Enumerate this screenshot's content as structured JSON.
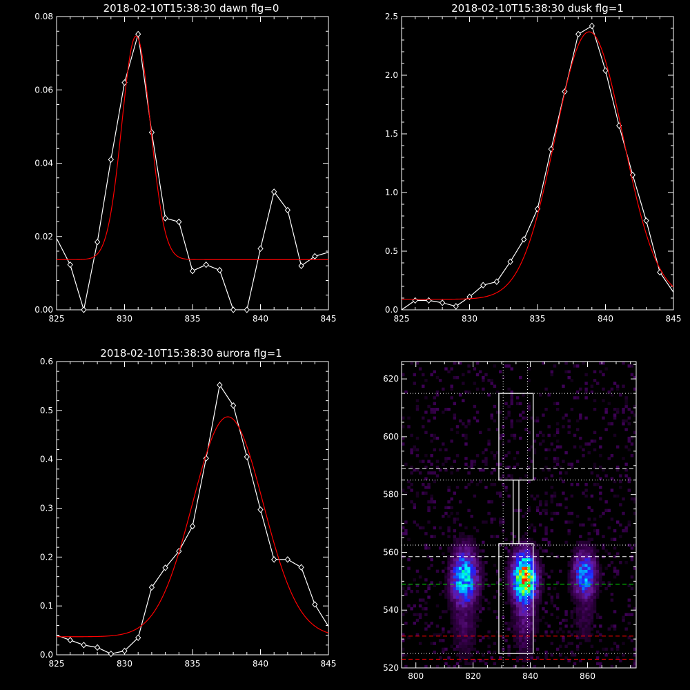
{
  "chart_data": [
    {
      "id": "dawn",
      "type": "line",
      "title": "2018-02-10T15:38:30 dawn flg=0",
      "xlim": [
        825,
        845
      ],
      "ylim": [
        0,
        0.08
      ],
      "xticks": [
        825,
        830,
        835,
        840,
        845
      ],
      "yticks": [
        0,
        0.02,
        0.04,
        0.06,
        0.08
      ],
      "ytick_labels": [
        "0.00",
        "0.02",
        "0.04",
        "0.06",
        "0.08"
      ],
      "series": [
        {
          "color": "#ffffff",
          "marker": "diamond",
          "x": [
            825,
            826,
            827,
            828,
            829,
            830,
            831,
            832,
            833,
            834,
            835,
            836,
            837,
            838,
            839,
            840,
            841,
            842,
            843,
            844,
            845
          ],
          "y": [
            0.0195,
            0.0123,
            0.0,
            0.0185,
            0.041,
            0.062,
            0.0752,
            0.0484,
            0.025,
            0.024,
            0.0106,
            0.0123,
            0.0108,
            0.0,
            0.0,
            0.0167,
            0.0322,
            0.0272,
            0.012,
            0.0146,
            0.0157
          ]
        },
        {
          "color": "#ff0000",
          "fit": "gaussian",
          "center": 830.85,
          "amplitude": 0.061,
          "sigma": 1.05,
          "baseline": 0.0137
        }
      ]
    },
    {
      "id": "dusk",
      "type": "line",
      "title": "2018-02-10T15:38:30 dusk flg=1",
      "xlim": [
        825,
        845
      ],
      "ylim": [
        0,
        2.5
      ],
      "xticks": [
        825,
        830,
        835,
        840,
        845
      ],
      "yticks": [
        0,
        0.5,
        1.0,
        1.5,
        2.0,
        2.5
      ],
      "ytick_labels": [
        "0.0",
        "0.5",
        "1.0",
        "1.5",
        "2.0",
        "2.5"
      ],
      "series": [
        {
          "color": "#ffffff",
          "marker": "diamond",
          "x": [
            825,
            826,
            827,
            828,
            829,
            830,
            831,
            832,
            833,
            834,
            835,
            836,
            837,
            838,
            839,
            840,
            841,
            842,
            843,
            844,
            845
          ],
          "y": [
            0.0,
            0.08,
            0.08,
            0.06,
            0.03,
            0.11,
            0.21,
            0.24,
            0.41,
            0.6,
            0.86,
            1.37,
            1.86,
            2.35,
            2.42,
            2.04,
            1.57,
            1.15,
            0.76,
            0.32,
            0.15
          ]
        },
        {
          "color": "#ff0000",
          "fit": "gaussian",
          "center": 838.8,
          "amplitude": 2.28,
          "sigma": 2.5,
          "baseline": 0.09
        }
      ]
    },
    {
      "id": "aurora",
      "type": "line",
      "title": "2018-02-10T15:38:30 aurora flg=1",
      "xlim": [
        825,
        845
      ],
      "ylim": [
        0,
        0.6
      ],
      "xticks": [
        825,
        830,
        835,
        840,
        845
      ],
      "yticks": [
        0,
        0.1,
        0.2,
        0.3,
        0.4,
        0.5,
        0.6
      ],
      "ytick_labels": [
        "0.0",
        "0.1",
        "0.2",
        "0.3",
        "0.4",
        "0.5",
        "0.6"
      ],
      "series": [
        {
          "color": "#ffffff",
          "marker": "diamond",
          "x": [
            825,
            826,
            827,
            828,
            829,
            830,
            831,
            832,
            833,
            834,
            835,
            836,
            837,
            838,
            839,
            840,
            841,
            842,
            843,
            844,
            845
          ],
          "y": [
            0.04,
            0.03,
            0.02,
            0.015,
            0.002,
            0.008,
            0.035,
            0.138,
            0.178,
            0.212,
            0.263,
            0.402,
            0.552,
            0.51,
            0.405,
            0.297,
            0.195,
            0.195,
            0.179,
            0.103,
            0.058
          ]
        },
        {
          "color": "#ff0000",
          "fit": "gaussian",
          "center": 837.6,
          "amplitude": 0.45,
          "sigma": 2.6,
          "baseline": 0.037
        }
      ]
    },
    {
      "id": "spectrogram",
      "type": "heatmap",
      "title": "",
      "xlim": [
        795,
        877
      ],
      "ylim": [
        520,
        626
      ],
      "xticks": [
        800,
        820,
        840,
        860
      ],
      "yticks": [
        520,
        540,
        560,
        580,
        600,
        620
      ],
      "colormap": [
        "#000000",
        "#3a0050",
        "#6a1a9a",
        "#2020ff",
        "#00a0ff",
        "#00ffff",
        "#00ff60",
        "#ffff00",
        "#ff2000"
      ],
      "emission_bands": [
        {
          "x_center": 817,
          "x_width": 4.5,
          "y_center": 551,
          "y_sigma": 7,
          "peak": 0.62
        },
        {
          "x_center": 838,
          "x_width": 4.0,
          "y_center": 551,
          "y_sigma": 6,
          "peak": 1.0
        },
        {
          "x_center": 859,
          "x_width": 4.0,
          "y_center": 552,
          "y_sigma": 6,
          "peak": 0.5
        }
      ],
      "boxes": [
        {
          "x": [
            829,
            841
          ],
          "y": [
            525,
            563
          ]
        },
        {
          "x": [
            829,
            841
          ],
          "y": [
            585,
            615
          ]
        },
        {
          "x": [
            834,
            836
          ],
          "y": [
            563,
            585
          ]
        }
      ],
      "hlines": [
        {
          "y": 615,
          "style": "dotted",
          "color": "#ffffff"
        },
        {
          "y": 589,
          "style": "dashed",
          "color": "#ffffff"
        },
        {
          "y": 585,
          "style": "dotted",
          "color": "#ffffff"
        },
        {
          "y": 562.5,
          "style": "dotted",
          "color": "#ffffff"
        },
        {
          "y": 558.5,
          "style": "dashed",
          "color": "#ffffff"
        },
        {
          "y": 549,
          "style": "dashed",
          "color": "#00ff00"
        },
        {
          "y": 531,
          "style": "dashed",
          "color": "#ff0000"
        },
        {
          "y": 525,
          "style": "dotted",
          "color": "#ffffff"
        },
        {
          "y": 523,
          "style": "dashed",
          "color": "#ff0000"
        }
      ],
      "vlines": [
        {
          "x": 830.5,
          "style": "dotted",
          "color": "#ffffff"
        },
        {
          "x": 839,
          "style": "dotted",
          "color": "#ffffff"
        }
      ]
    }
  ]
}
